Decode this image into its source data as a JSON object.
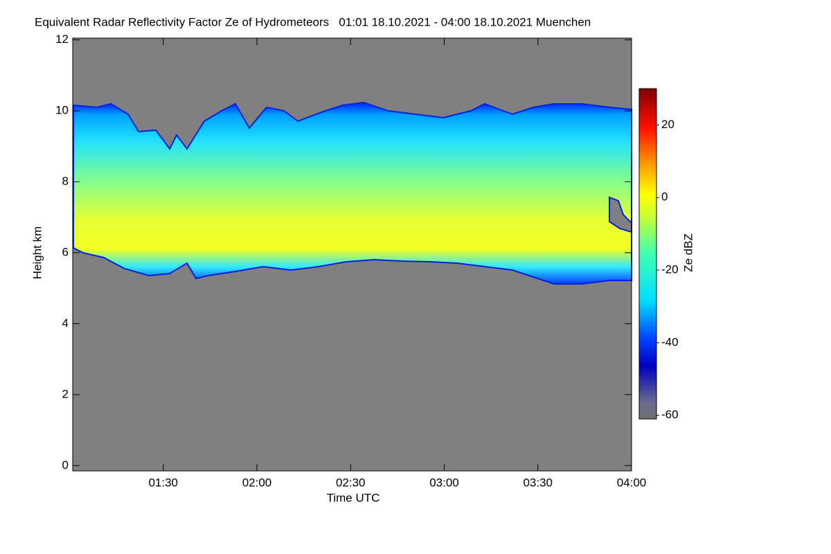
{
  "chart_data": {
    "type": "heatmap",
    "title": "Equivalent Radar Reflectivity Factor Ze of Hydrometeors   01:01 18.10.2021 - 04:00 18.10.2021 Muenchen",
    "xlabel": "Time UTC",
    "ylabel": "Height km",
    "xlim": [
      61,
      240
    ],
    "xticks": [
      {
        "value": 90,
        "label": "01:30"
      },
      {
        "value": 120,
        "label": "02:00"
      },
      {
        "value": 150,
        "label": "02:30"
      },
      {
        "value": 180,
        "label": "03:00"
      },
      {
        "value": 210,
        "label": "03:30"
      },
      {
        "value": 240,
        "label": "04:00"
      }
    ],
    "ylim": [
      -0.15,
      12.05
    ],
    "yticks": [
      0,
      2,
      4,
      6,
      8,
      10,
      12
    ],
    "background": "#808080",
    "colorbar": {
      "label": "Ze dBZ",
      "lim": [
        -61,
        30
      ],
      "ticks": [
        -60,
        -40,
        -20,
        0,
        20
      ]
    }
  }
}
